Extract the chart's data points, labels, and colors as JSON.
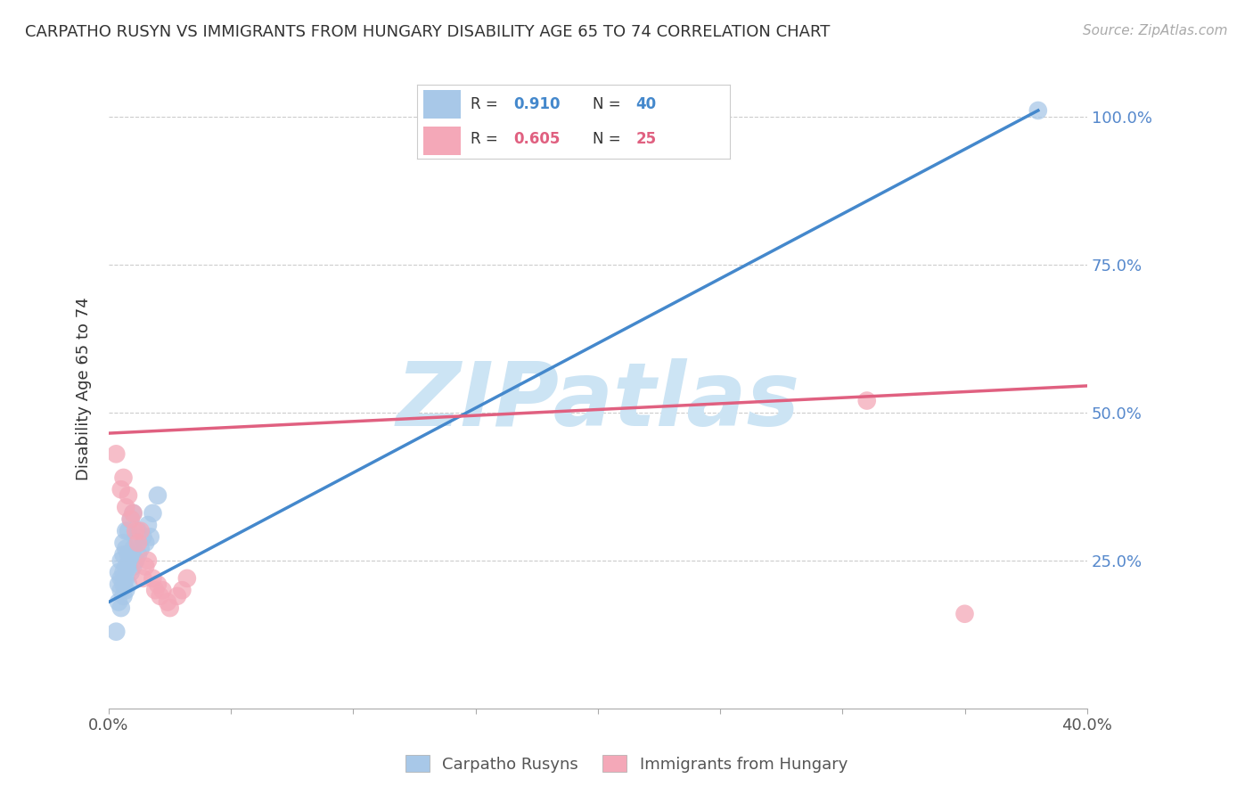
{
  "title": "CARPATHO RUSYN VS IMMIGRANTS FROM HUNGARY DISABILITY AGE 65 TO 74 CORRELATION CHART",
  "source": "Source: ZipAtlas.com",
  "ylabel": "Disability Age 65 to 74",
  "xlim": [
    0.0,
    0.4
  ],
  "ylim": [
    0.0,
    1.08
  ],
  "y_ticks": [
    0.25,
    0.5,
    0.75,
    1.0
  ],
  "y_tick_labels": [
    "25.0%",
    "50.0%",
    "75.0%",
    "100.0%"
  ],
  "blue_R": 0.91,
  "blue_N": 40,
  "pink_R": 0.605,
  "pink_N": 25,
  "blue_color": "#a8c8e8",
  "pink_color": "#f4a8b8",
  "blue_line_color": "#4488cc",
  "pink_line_color": "#e06080",
  "right_tick_color": "#5588cc",
  "watermark_color": "#cce4f4",
  "legend_label_blue": "Carpatho Rusyns",
  "legend_label_pink": "Immigrants from Hungary",
  "blue_line_x0": 0.0,
  "blue_line_y0": 0.18,
  "blue_line_x1": 0.38,
  "blue_line_y1": 1.01,
  "pink_line_x0": 0.0,
  "pink_line_y0": 0.465,
  "pink_line_x1": 0.4,
  "pink_line_y1": 0.545,
  "blue_scatter_x": [
    0.003,
    0.004,
    0.004,
    0.004,
    0.005,
    0.005,
    0.005,
    0.005,
    0.006,
    0.006,
    0.006,
    0.006,
    0.006,
    0.007,
    0.007,
    0.007,
    0.007,
    0.007,
    0.008,
    0.008,
    0.008,
    0.008,
    0.009,
    0.009,
    0.009,
    0.01,
    0.01,
    0.01,
    0.011,
    0.011,
    0.012,
    0.012,
    0.013,
    0.014,
    0.015,
    0.016,
    0.017,
    0.018,
    0.02,
    0.38
  ],
  "blue_scatter_y": [
    0.13,
    0.18,
    0.21,
    0.23,
    0.17,
    0.2,
    0.22,
    0.25,
    0.19,
    0.21,
    0.23,
    0.26,
    0.28,
    0.2,
    0.22,
    0.24,
    0.27,
    0.3,
    0.21,
    0.24,
    0.26,
    0.3,
    0.23,
    0.26,
    0.32,
    0.24,
    0.27,
    0.33,
    0.25,
    0.29,
    0.26,
    0.3,
    0.27,
    0.29,
    0.28,
    0.31,
    0.29,
    0.33,
    0.36,
    1.01
  ],
  "pink_scatter_x": [
    0.003,
    0.005,
    0.006,
    0.007,
    0.008,
    0.009,
    0.01,
    0.011,
    0.012,
    0.013,
    0.014,
    0.015,
    0.016,
    0.018,
    0.019,
    0.02,
    0.021,
    0.022,
    0.024,
    0.025,
    0.028,
    0.03,
    0.032,
    0.31,
    0.35
  ],
  "pink_scatter_y": [
    0.43,
    0.37,
    0.39,
    0.34,
    0.36,
    0.32,
    0.33,
    0.3,
    0.28,
    0.3,
    0.22,
    0.24,
    0.25,
    0.22,
    0.2,
    0.21,
    0.19,
    0.2,
    0.18,
    0.17,
    0.19,
    0.2,
    0.22,
    0.52,
    0.16
  ]
}
